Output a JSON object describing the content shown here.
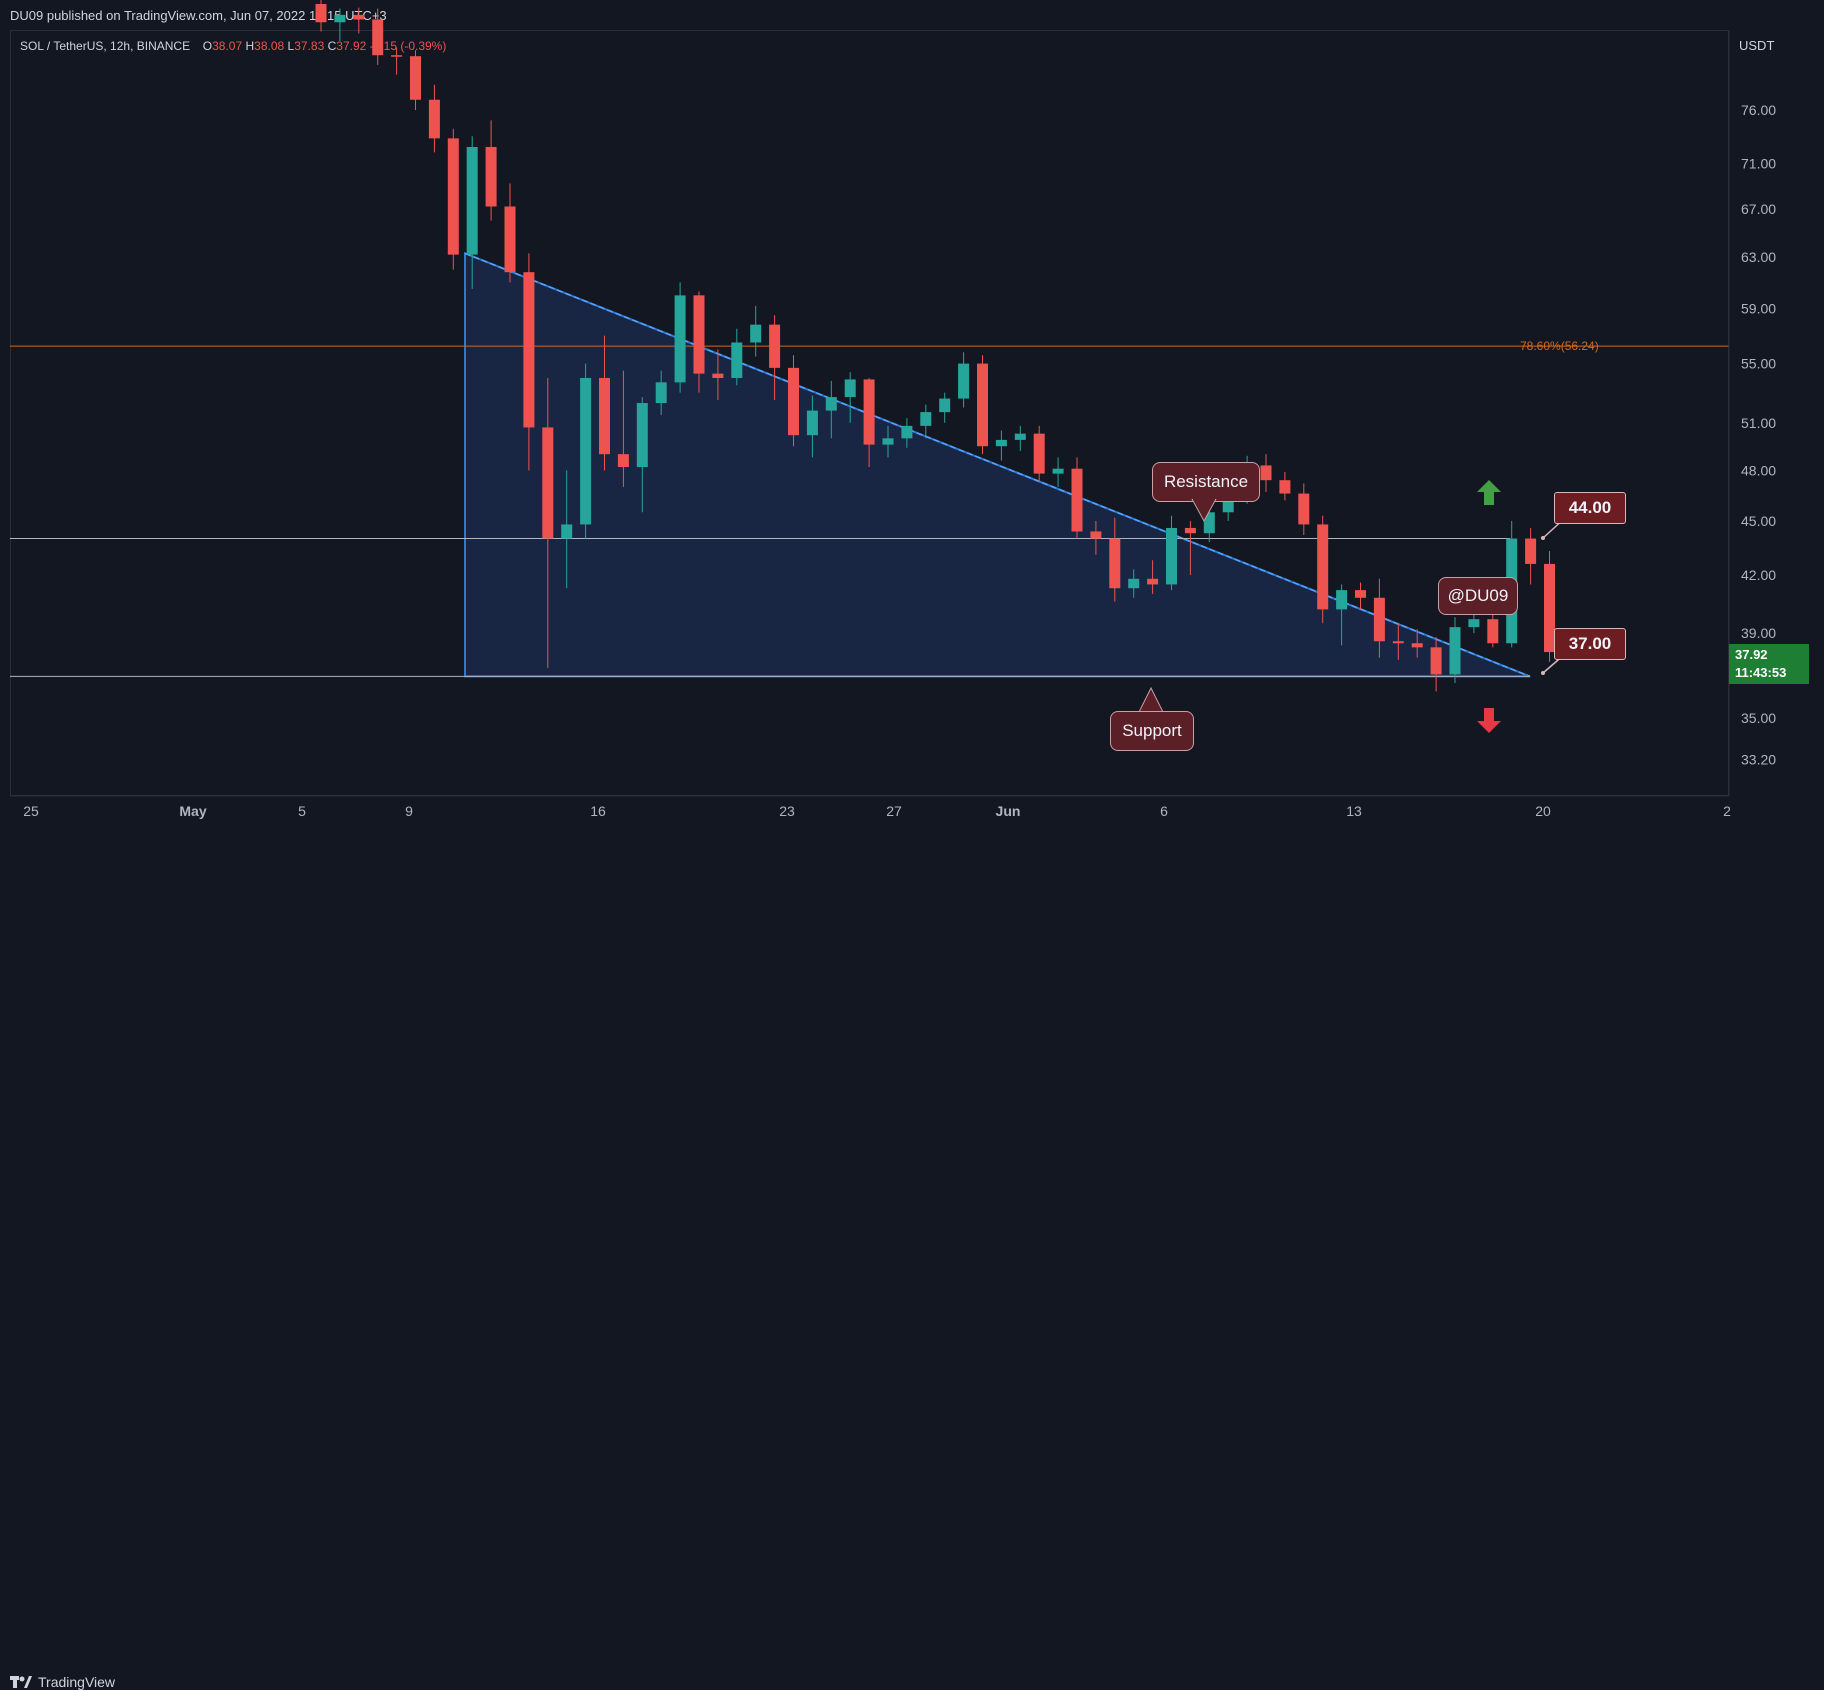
{
  "header": {
    "published": "DU09 published on TradingView.com, Jun 07, 2022 15:15 UTC+3"
  },
  "footer": {
    "brand": "TradingView"
  },
  "symbol_line": {
    "symbol": "SOL / TetherUS, 12h, BINANCE",
    "o_label": "O",
    "o": "38.07",
    "h_label": "H",
    "h": "38.08",
    "l_label": "L",
    "l": "37.83",
    "c_label": "C",
    "c": "37.92",
    "change": "-0.15 (-0.39%)"
  },
  "axis": {
    "currency": "USDT",
    "y_ticks": [
      "76.00",
      "71.00",
      "67.00",
      "63.00",
      "59.00",
      "55.00",
      "51.00",
      "48.00",
      "45.00",
      "42.00",
      "39.00",
      "35.00",
      "33.20"
    ],
    "x_ticks": [
      "25",
      "May",
      "5",
      "9",
      "16",
      "23",
      "27",
      "Jun",
      "6",
      "13",
      "20",
      "2"
    ]
  },
  "fib": {
    "label": "78.60%(56.24)",
    "value": 56.24
  },
  "levels": {
    "resistance": 44.0,
    "support": 37.0
  },
  "annotations": {
    "resistance": "Resistance",
    "support": "Support",
    "tag_44": "44.00",
    "tag_37": "37.00",
    "author": "@DU09"
  },
  "last_price": {
    "price": "37.92",
    "countdown": "11:43:53"
  },
  "colors": {
    "up": "#26a69a",
    "down": "#ef5350",
    "triangle": "#2a7bd0",
    "fib": "#d2691e",
    "bg": "#131722"
  },
  "chart_data": {
    "type": "candlestick",
    "title": "SOL / TetherUS, 12h, BINANCE",
    "ylabel": "USDT",
    "y_scale": "log",
    "ylim": [
      31.5,
      88.0
    ],
    "candles": [
      {
        "d": "May 06 AM",
        "o": 87.0,
        "h": 90.0,
        "l": 84.0,
        "c": 85.0
      },
      {
        "d": "May 06 PM",
        "o": 85.0,
        "h": 86.5,
        "l": 83.0,
        "c": 85.8
      },
      {
        "d": "May 07 AM",
        "o": 85.8,
        "h": 86.6,
        "l": 83.8,
        "c": 85.3
      },
      {
        "d": "May 07 PM",
        "o": 85.3,
        "h": 86.5,
        "l": 80.5,
        "c": 81.5
      },
      {
        "d": "May 08 AM",
        "o": 81.5,
        "h": 82.3,
        "l": 79.5,
        "c": 81.4
      },
      {
        "d": "May 08 PM",
        "o": 81.4,
        "h": 82.0,
        "l": 76.0,
        "c": 77.0
      },
      {
        "d": "May 09 AM",
        "o": 77.0,
        "h": 78.5,
        "l": 72.0,
        "c": 73.3
      },
      {
        "d": "May 09 PM",
        "o": 73.3,
        "h": 74.2,
        "l": 62.0,
        "c": 63.2
      },
      {
        "d": "May 10 AM",
        "o": 63.2,
        "h": 73.5,
        "l": 60.5,
        "c": 72.5
      },
      {
        "d": "May 10 PM",
        "o": 72.5,
        "h": 75.0,
        "l": 66.0,
        "c": 67.2
      },
      {
        "d": "May 11 AM",
        "o": 67.2,
        "h": 69.2,
        "l": 61.0,
        "c": 61.8
      },
      {
        "d": "May 11 PM",
        "o": 61.8,
        "h": 63.3,
        "l": 48.0,
        "c": 50.7
      },
      {
        "d": "May 12 AM",
        "o": 50.7,
        "h": 54.0,
        "l": 37.3,
        "c": 44.0
      },
      {
        "d": "May 12 PM",
        "o": 44.0,
        "h": 48.0,
        "l": 41.3,
        "c": 44.8
      },
      {
        "d": "May 13 AM",
        "o": 44.8,
        "h": 55.0,
        "l": 44.0,
        "c": 54.0
      },
      {
        "d": "May 13 PM",
        "o": 54.0,
        "h": 57.0,
        "l": 48.0,
        "c": 49.0
      },
      {
        "d": "May 14 AM",
        "o": 49.0,
        "h": 54.5,
        "l": 47.0,
        "c": 48.2
      },
      {
        "d": "May 14 PM",
        "o": 48.2,
        "h": 52.7,
        "l": 45.5,
        "c": 52.3
      },
      {
        "d": "May 15 AM",
        "o": 52.3,
        "h": 54.5,
        "l": 51.5,
        "c": 53.7
      },
      {
        "d": "May 15 PM",
        "o": 53.7,
        "h": 61.0,
        "l": 53.0,
        "c": 60.0
      },
      {
        "d": "May 16 AM",
        "o": 60.0,
        "h": 60.3,
        "l": 53.0,
        "c": 54.3
      },
      {
        "d": "May 16 PM",
        "o": 54.3,
        "h": 56.0,
        "l": 52.5,
        "c": 54.0
      },
      {
        "d": "May 17 AM",
        "o": 54.0,
        "h": 57.5,
        "l": 53.5,
        "c": 56.5
      },
      {
        "d": "May 17 PM",
        "o": 56.5,
        "h": 59.2,
        "l": 55.5,
        "c": 57.8
      },
      {
        "d": "May 18 AM",
        "o": 57.8,
        "h": 58.5,
        "l": 52.5,
        "c": 54.7
      },
      {
        "d": "May 18 PM",
        "o": 54.7,
        "h": 55.6,
        "l": 49.5,
        "c": 50.2
      },
      {
        "d": "May 19 AM",
        "o": 50.2,
        "h": 52.8,
        "l": 48.8,
        "c": 51.8
      },
      {
        "d": "May 19 PM",
        "o": 51.8,
        "h": 53.8,
        "l": 50.0,
        "c": 52.7
      },
      {
        "d": "May 20 AM",
        "o": 52.7,
        "h": 54.4,
        "l": 51.0,
        "c": 53.9
      },
      {
        "d": "May 20 PM",
        "o": 53.9,
        "h": 54.0,
        "l": 48.2,
        "c": 49.6
      },
      {
        "d": "May 21 AM",
        "o": 49.6,
        "h": 50.8,
        "l": 48.8,
        "c": 50.0
      },
      {
        "d": "May 21 PM",
        "o": 50.0,
        "h": 51.3,
        "l": 49.4,
        "c": 50.8
      },
      {
        "d": "May 22 AM",
        "o": 50.8,
        "h": 52.2,
        "l": 50.0,
        "c": 51.7
      },
      {
        "d": "May 22 PM",
        "o": 51.7,
        "h": 53.0,
        "l": 51.0,
        "c": 52.6
      },
      {
        "d": "May 23 AM",
        "o": 52.6,
        "h": 55.8,
        "l": 52.0,
        "c": 55.0
      },
      {
        "d": "May 23 PM",
        "o": 55.0,
        "h": 55.6,
        "l": 49.0,
        "c": 49.5
      },
      {
        "d": "May 24 AM",
        "o": 49.5,
        "h": 50.5,
        "l": 48.6,
        "c": 49.9
      },
      {
        "d": "May 24 PM",
        "o": 49.9,
        "h": 50.8,
        "l": 49.2,
        "c": 50.3
      },
      {
        "d": "May 25 AM",
        "o": 50.3,
        "h": 50.8,
        "l": 47.3,
        "c": 47.8
      },
      {
        "d": "May 25 PM",
        "o": 47.8,
        "h": 48.8,
        "l": 47.0,
        "c": 48.1
      },
      {
        "d": "May 26 AM",
        "o": 48.1,
        "h": 48.8,
        "l": 44.0,
        "c": 44.4
      },
      {
        "d": "May 26 PM",
        "o": 44.4,
        "h": 45.0,
        "l": 43.1,
        "c": 44.0
      },
      {
        "d": "May 27 AM",
        "o": 44.0,
        "h": 45.2,
        "l": 40.6,
        "c": 41.3
      },
      {
        "d": "May 27 PM",
        "o": 41.3,
        "h": 42.3,
        "l": 40.8,
        "c": 41.8
      },
      {
        "d": "May 28 AM",
        "o": 41.8,
        "h": 42.8,
        "l": 41.0,
        "c": 41.5
      },
      {
        "d": "May 28 PM",
        "o": 41.5,
        "h": 45.3,
        "l": 41.2,
        "c": 44.6
      },
      {
        "d": "May 29 AM",
        "o": 44.6,
        "h": 45.0,
        "l": 42.0,
        "c": 44.3
      },
      {
        "d": "May 29 PM",
        "o": 44.3,
        "h": 46.4,
        "l": 43.8,
        "c": 45.5
      },
      {
        "d": "May 30 AM",
        "o": 45.5,
        "h": 47.7,
        "l": 45.0,
        "c": 46.8
      },
      {
        "d": "May 30 PM",
        "o": 46.8,
        "h": 48.9,
        "l": 46.0,
        "c": 48.3
      },
      {
        "d": "May 31 AM",
        "o": 48.3,
        "h": 49.0,
        "l": 46.7,
        "c": 47.4
      },
      {
        "d": "May 31 PM",
        "o": 47.4,
        "h": 47.9,
        "l": 46.2,
        "c": 46.6
      },
      {
        "d": "Jun 01 AM",
        "o": 46.6,
        "h": 47.2,
        "l": 44.2,
        "c": 44.8
      },
      {
        "d": "Jun 01 PM",
        "o": 44.8,
        "h": 45.3,
        "l": 39.5,
        "c": 40.2
      },
      {
        "d": "Jun 02 AM",
        "o": 40.2,
        "h": 41.5,
        "l": 38.4,
        "c": 41.2
      },
      {
        "d": "Jun 02 PM",
        "o": 41.2,
        "h": 41.6,
        "l": 40.2,
        "c": 40.8
      },
      {
        "d": "Jun 03 AM",
        "o": 40.8,
        "h": 41.8,
        "l": 37.8,
        "c": 38.6
      },
      {
        "d": "Jun 03 PM",
        "o": 38.6,
        "h": 39.5,
        "l": 37.7,
        "c": 38.5
      },
      {
        "d": "Jun 04 AM",
        "o": 38.5,
        "h": 39.2,
        "l": 37.8,
        "c": 38.3
      },
      {
        "d": "Jun 04 PM",
        "o": 38.3,
        "h": 38.8,
        "l": 36.2,
        "c": 37.0
      },
      {
        "d": "Jun 05 AM",
        "o": 37.0,
        "h": 39.8,
        "l": 36.6,
        "c": 39.3
      },
      {
        "d": "Jun 05 PM",
        "o": 39.3,
        "h": 40.6,
        "l": 39.0,
        "c": 39.7
      },
      {
        "d": "Jun 06 AM",
        "o": 39.7,
        "h": 40.4,
        "l": 38.3,
        "c": 38.5
      },
      {
        "d": "Jun 06 PM",
        "o": 38.5,
        "h": 45.0,
        "l": 38.3,
        "c": 44.0
      },
      {
        "d": "Jun 07 AM",
        "o": 44.0,
        "h": 44.6,
        "l": 41.5,
        "c": 42.6
      },
      {
        "d": "Jun 07 PM",
        "o": 42.6,
        "h": 43.3,
        "l": 37.6,
        "c": 38.07
      },
      {
        "d": "Jun 08 AM",
        "o": 38.07,
        "h": 38.08,
        "l": 37.83,
        "c": 37.92
      }
    ]
  }
}
